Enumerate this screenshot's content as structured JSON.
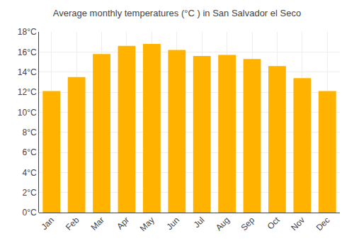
{
  "chart_data": {
    "type": "bar",
    "title": "Average monthly temperatures (°C ) in San Salvador el Seco",
    "categories": [
      "Jan",
      "Feb",
      "Mar",
      "Apr",
      "May",
      "Jun",
      "Jul",
      "Aug",
      "Sep",
      "Oct",
      "Nov",
      "Dec"
    ],
    "values": [
      12.1,
      13.5,
      15.8,
      16.6,
      16.8,
      16.2,
      15.6,
      15.7,
      15.3,
      14.6,
      13.4,
      12.1
    ],
    "color": "#FFB300",
    "ylim": [
      0,
      18
    ],
    "yticks": [
      {
        "value": 0,
        "label": "0°C"
      },
      {
        "value": 2,
        "label": "2°C"
      },
      {
        "value": 4,
        "label": "4°C"
      },
      {
        "value": 6,
        "label": "6°C"
      },
      {
        "value": 8,
        "label": "8°C"
      },
      {
        "value": 10,
        "label": "10°C"
      },
      {
        "value": 12,
        "label": "12°C"
      },
      {
        "value": 14,
        "label": "14°C"
      },
      {
        "value": 16,
        "label": "16°C"
      },
      {
        "value": 18,
        "label": "18°C"
      }
    ],
    "grid": true
  }
}
